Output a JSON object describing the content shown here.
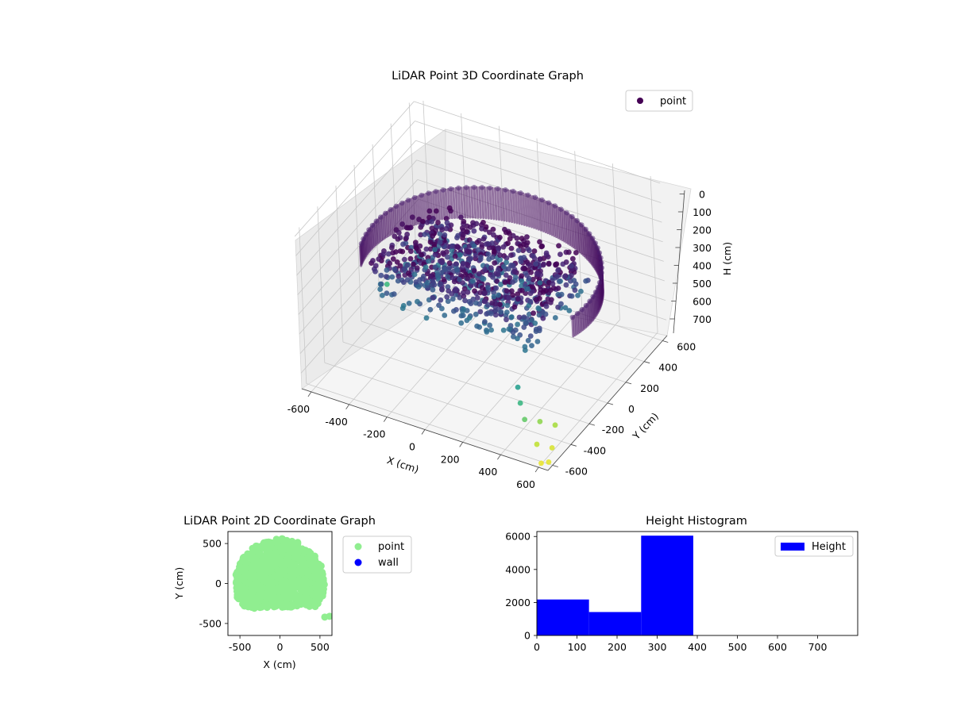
{
  "chart_data": [
    {
      "type": "scatter",
      "projection": "3d",
      "title": "LiDAR Point 3D Coordinate Graph",
      "xlabel": "X (cm)",
      "ylabel": "Y (cm)",
      "zlabel": "H (cm)",
      "xlim": [
        -650,
        650
      ],
      "ylim": [
        -650,
        650
      ],
      "zlim": [
        780,
        -20
      ],
      "zaxis_inverted": true,
      "xticks": [
        -600,
        -400,
        -200,
        0,
        200,
        400,
        600
      ],
      "yticks": [
        -600,
        -400,
        -200,
        0,
        200,
        400,
        600
      ],
      "zticks": [
        0,
        100,
        200,
        300,
        400,
        500,
        600,
        700
      ],
      "colormap": "viridis",
      "color_by": "H",
      "grid": true,
      "legend": {
        "position": "upper-right",
        "entries": [
          {
            "label": "point",
            "color": "#440154"
          }
        ]
      },
      "series": [
        {
          "name": "point",
          "shape": "dome shell of points around the sensor, radius ≈ 580 cm",
          "shell": {
            "radius": 580,
            "h_range": [
              280,
              390
            ],
            "angle_range_deg": [
              -15,
              195
            ]
          },
          "inner_cluster": {
            "x_range": [
              -480,
              420
            ],
            "y_range": [
              -250,
              350
            ],
            "h_range": [
              280,
              480
            ]
          },
          "outliers": [
            {
              "x": -560,
              "y": 110,
              "h": 620
            },
            {
              "x": 390,
              "y": -420,
              "h": 560
            },
            {
              "x": 420,
              "y": -460,
              "h": 610
            },
            {
              "x": 460,
              "y": -500,
              "h": 660
            },
            {
              "x": 500,
              "y": -420,
              "h": 700
            },
            {
              "x": 560,
              "y": -380,
              "h": 720
            },
            {
              "x": 540,
              "y": -540,
              "h": 740
            },
            {
              "x": 600,
              "y": -500,
              "h": 760
            },
            {
              "x": 630,
              "y": -600,
              "h": 770
            },
            {
              "x": 600,
              "y": -620,
              "h": 775
            }
          ]
        }
      ]
    },
    {
      "type": "scatter",
      "title": "LiDAR Point 2D Coordinate Graph",
      "xlabel": "X (cm)",
      "ylabel": "Y (cm)",
      "xlim": [
        -650,
        650
      ],
      "ylim": [
        -650,
        650
      ],
      "xticks": [
        -500,
        0,
        500
      ],
      "yticks": [
        -500,
        0,
        500
      ],
      "legend": {
        "position": "outside-right",
        "entries": [
          {
            "label": "point",
            "color": "#90ee90"
          },
          {
            "label": "wall",
            "color": "#0000ff"
          }
        ]
      },
      "series": [
        {
          "name": "point",
          "color": "#90ee90",
          "shape": "semicircular cloud, radius ≈ 560 cm, y from -300 to 560"
        },
        {
          "name": "wall",
          "color": "#0000ff",
          "points": []
        }
      ]
    },
    {
      "type": "bar",
      "subtype": "histogram",
      "title": "Height Histogram",
      "xlim": [
        0,
        800
      ],
      "ylim": [
        0,
        6300
      ],
      "xticks": [
        0,
        100,
        200,
        300,
        400,
        500,
        600,
        700
      ],
      "yticks": [
        0,
        2000,
        4000,
        6000
      ],
      "bin_edges": [
        0,
        130,
        260,
        390,
        520,
        650,
        780
      ],
      "values": [
        2180,
        1420,
        6050,
        0,
        0,
        0
      ],
      "color": "#0000ff",
      "legend": {
        "position": "upper-right",
        "entries": [
          {
            "label": "Height",
            "color": "#0000ff"
          }
        ]
      }
    }
  ]
}
